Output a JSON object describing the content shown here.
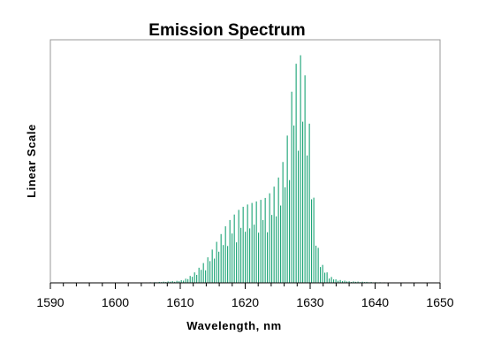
{
  "chart_data": {
    "type": "line",
    "title": "Emission Spectrum",
    "xlabel": "Wavelength, nm",
    "ylabel": "Linear Scale",
    "xlim": [
      1590,
      1650
    ],
    "ylim": [
      0,
      1
    ],
    "x_ticks": [
      "1590",
      "1600",
      "1610",
      "1620",
      "1630",
      "1640",
      "1650"
    ],
    "y_ticks_visible": false,
    "grid": false,
    "legend": "none",
    "color": "#009966",
    "series": [
      {
        "x": [
          1602,
          1606,
          1608,
          1610,
          1611,
          1612,
          1613,
          1614,
          1615,
          1616,
          1617,
          1618,
          1619,
          1620,
          1621,
          1622,
          1623,
          1624,
          1625,
          1626,
          1626.5,
          1627,
          1627.5,
          1628,
          1628.5,
          1629,
          1629.5,
          1630,
          1630.5,
          1631,
          1632,
          1633,
          1634,
          1636,
          1640,
          1646
        ],
        "values": [
          0.0,
          0.003,
          0.006,
          0.01,
          0.02,
          0.04,
          0.07,
          0.1,
          0.15,
          0.2,
          0.25,
          0.29,
          0.32,
          0.34,
          0.35,
          0.36,
          0.37,
          0.4,
          0.45,
          0.55,
          0.65,
          0.8,
          0.92,
          0.98,
          1.0,
          0.95,
          0.85,
          0.65,
          0.4,
          0.18,
          0.07,
          0.03,
          0.015,
          0.007,
          0.003,
          0.0
        ]
      }
    ]
  }
}
